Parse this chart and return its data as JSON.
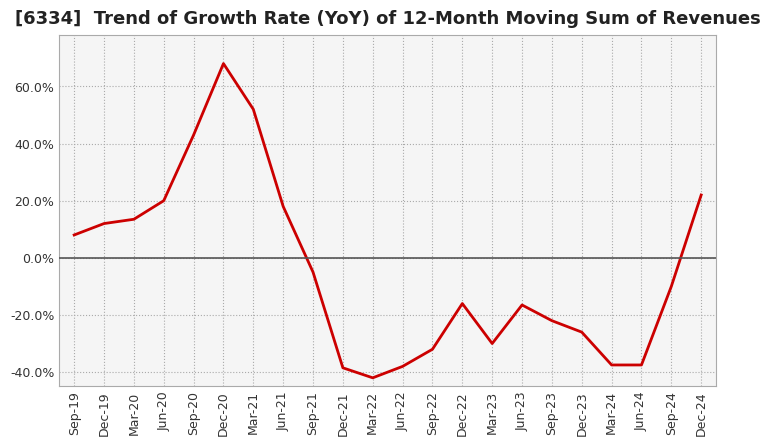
{
  "title": "[6334]  Trend of Growth Rate (YoY) of 12-Month Moving Sum of Revenues",
  "x_labels": [
    "Sep-19",
    "Dec-19",
    "Mar-20",
    "Jun-20",
    "Sep-20",
    "Dec-20",
    "Mar-21",
    "Jun-21",
    "Sep-21",
    "Dec-21",
    "Mar-22",
    "Jun-22",
    "Sep-22",
    "Dec-22",
    "Mar-23",
    "Jun-23",
    "Sep-23",
    "Dec-23",
    "Mar-24",
    "Jun-24",
    "Sep-24",
    "Dec-24"
  ],
  "y_values": [
    8.0,
    12.0,
    13.5,
    20.0,
    43.0,
    68.0,
    52.0,
    18.0,
    -5.0,
    -38.5,
    -42.0,
    -38.0,
    -32.0,
    -16.0,
    -30.0,
    -16.5,
    -22.0,
    -26.0,
    -37.5,
    -37.5,
    -10.0,
    22.0
  ],
  "line_color": "#cc0000",
  "background_color": "#ffffff",
  "plot_bg_color": "#f5f5f5",
  "grid_color": "#aaaaaa",
  "zero_line_color": "#555555",
  "ylim": [
    -45,
    78
  ],
  "yticks": [
    -40.0,
    -20.0,
    0.0,
    20.0,
    40.0,
    60.0
  ],
  "title_fontsize": 13,
  "tick_fontsize": 9
}
